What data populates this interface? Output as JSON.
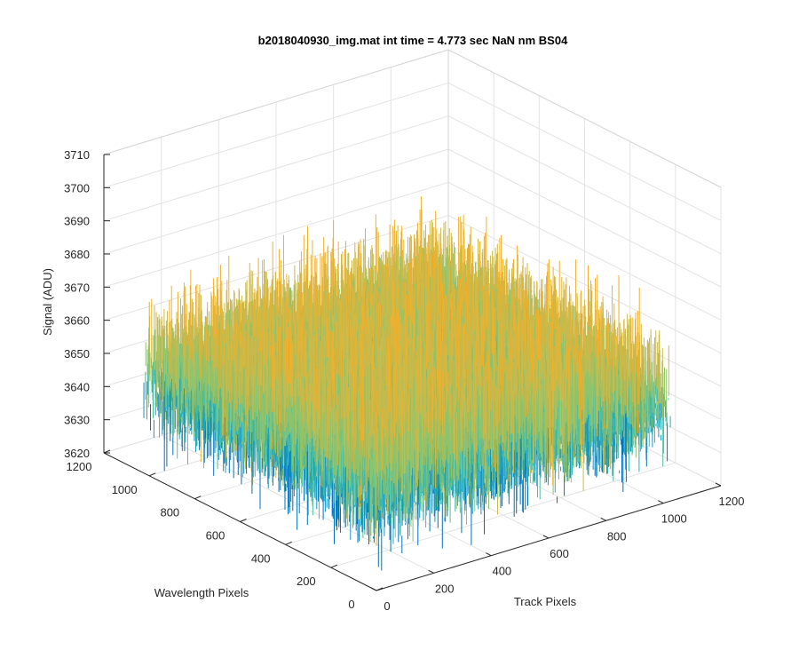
{
  "chart_data": {
    "type": "surface3d",
    "title": "b2018040930_img.mat int time = 4.773 sec  NaN nm BS04",
    "xlabel": "Track Pixels",
    "ylabel": "Wavelength Pixels",
    "zlabel": "Signal (ADU)",
    "xlim": [
      0,
      1200
    ],
    "ylim": [
      0,
      1200
    ],
    "zlim": [
      3620,
      3710
    ],
    "xticks": [
      "0",
      "200",
      "400",
      "600",
      "800",
      "1000",
      "1200"
    ],
    "yticks": [
      "0",
      "200",
      "400",
      "600",
      "800",
      "1000",
      "1200"
    ],
    "zticks": [
      "3620",
      "3630",
      "3640",
      "3650",
      "3660",
      "3670",
      "3680",
      "3690",
      "3700",
      "3710"
    ],
    "data_extent": {
      "track_pixels": [
        0,
        1024
      ],
      "wavelength_pixels": [
        0,
        1024
      ]
    },
    "signal_mean": 3653,
    "signal_noise_range": [
      3628,
      3682
    ],
    "grid": true,
    "colormap": [
      "#0072BD",
      "#1496C8",
      "#27B0B9",
      "#4CBF9E",
      "#8AC46E",
      "#C9B94A",
      "#EDB12E"
    ]
  }
}
